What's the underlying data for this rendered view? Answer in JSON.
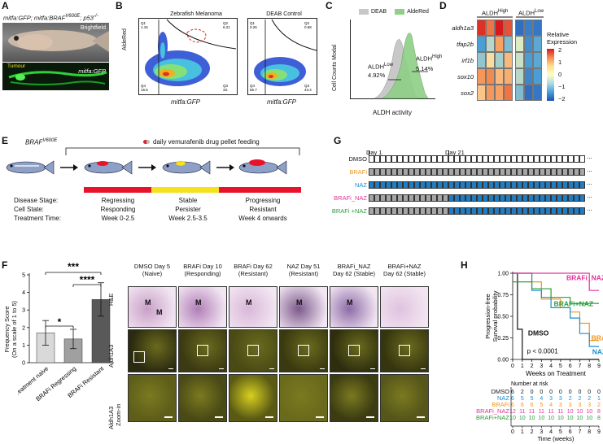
{
  "panel_letters": {
    "A": "A",
    "B": "B",
    "C": "C",
    "D": "D",
    "E": "E",
    "F": "F",
    "G": "G",
    "H": "H"
  },
  "panel_a": {
    "genotype_pre": "mitfa:GFP; mitfa:BRAF",
    "genotype_sup": "V600E",
    "genotype_mid": "; p53",
    "genotype_sup2": "-/-",
    "brightfield": "Brightfield",
    "tumour": "Tumour",
    "gfp": "mitfa:GFP"
  },
  "panel_b": {
    "title1": "Zebrafish Melanoma",
    "title2": "DEAB Control",
    "ylabel": "AldeRed",
    "xlabel1": "mitfa:GFP",
    "xlabel2": "mitfa:GFP",
    "q1a": "Q1",
    "q1a_v": "1.15",
    "q2a": "Q2",
    "q2a_v": "6.21",
    "q3a": "Q3",
    "q3a_v": "33.",
    "q4a": "Q4",
    "q4a_v": "16.5",
    "q1b": "Q1",
    "q1b_v": "0.26",
    "q2b": "Q2",
    "q2b_v": "0.68",
    "q3b": "Q3",
    "q3b_v": "43.4",
    "q4b": "Q4",
    "q4b_v": "55.7"
  },
  "panel_c": {
    "legend_deab": "DEAB",
    "legend_alde": "AldeRed",
    "ylabel": "Cell Counts Modal",
    "xlabel": "ALDH activity",
    "low_label": "ALDH",
    "low_sup": "Low",
    "low_pct": "4.92%",
    "high_label": "ALDH",
    "high_sup": "High",
    "high_pct": "5.14%",
    "colors": {
      "deab": "#c8c8c8",
      "alde": "#8fcf86"
    }
  },
  "panel_d": {
    "col_high": "ALDH",
    "col_high_sup": "High",
    "col_low": "ALDH",
    "col_low_sup": "Low",
    "genes": [
      "aldh1a3",
      "tfap2b",
      "irf1b",
      "sox10",
      "sox2"
    ],
    "legend_title1": "Relative",
    "legend_title2": "Expression",
    "legend_ticks": [
      "2",
      "1",
      "0",
      "−1",
      "−2"
    ],
    "values": [
      [
        1.8,
        1.2,
        2.0,
        1.5,
        -1.6,
        -1.4,
        -1.5
      ],
      [
        -1.0,
        -0.4,
        0.8,
        -0.7,
        -0.2,
        -1.2,
        -0.9
      ],
      [
        -0.6,
        0.3,
        -0.5,
        0.6,
        -0.3,
        -1.0,
        -0.9
      ],
      [
        0.9,
        1.0,
        0.6,
        0.7,
        -0.4,
        -1.3,
        -1.0
      ],
      [
        0.5,
        0.9,
        0.8,
        1.2,
        -0.7,
        -1.6,
        -1.5
      ]
    ]
  },
  "panel_e": {
    "braf": "BRAF",
    "braf_sup": "V600E",
    "pill": "daily vemurafenib drug pellet feeding",
    "row_labels": [
      "Disease Stage:",
      "Cell State:",
      "Treatment Time:"
    ],
    "stages": [
      {
        "s": "Regressing",
        "c": "Responding",
        "t": "Week 0-2.5"
      },
      {
        "s": "Stable",
        "c": "Persister",
        "t": "Week 2.5-3.5"
      },
      {
        "s": "Progressing",
        "c": "Resistant",
        "t": "Week 4 onwards"
      }
    ],
    "colors": {
      "red": "#e8132b",
      "yellow": "#f5e21c"
    }
  },
  "panel_g": {
    "day1": "Day 1",
    "day21": "Day 21",
    "rows": [
      {
        "label": "DMSO",
        "color": "#111111"
      },
      {
        "label": "BRAFi",
        "color": "#f29418"
      },
      {
        "label": "NAZ",
        "color": "#1a8fd1"
      },
      {
        "label": "BRAFi_NAZ",
        "color": "#e0349b"
      },
      {
        "label": "BRAFi +NAZ",
        "color": "#2a9d3a"
      }
    ],
    "dots": "...",
    "fill": {
      "gray": "#a6a6a6",
      "blue": "#1f7dc4",
      "white": "#ffffff"
    }
  },
  "panel_f": {
    "ylabel1": "Frequency Score",
    "ylabel2": "(On a scale of 1 to 5)",
    "yticks": [
      "5",
      "4",
      "3",
      "2",
      "1",
      "0"
    ],
    "sig1": "***",
    "sig2": "****",
    "sig3": "*"
  },
  "chart_data": [
    {
      "type": "bar",
      "title": "",
      "categories": [
        "Treatment naive",
        "BRAFi Regressing",
        "BRAFi Resistant"
      ],
      "values": [
        1.7,
        1.35,
        3.6
      ],
      "errors": [
        0.7,
        0.55,
        0.95
      ],
      "ylabel": "Frequency Score (On a scale of 1 to 5)",
      "ylim": [
        0,
        5
      ],
      "colors": [
        "#d9d9d9",
        "#a0a0a0",
        "#595959"
      ]
    },
    {
      "type": "line",
      "title": "",
      "xlabel": "Weeks on Treatment",
      "ylabel": "Progression-free Survival probability",
      "ylim": [
        0,
        1
      ],
      "xlim": [
        0,
        9
      ],
      "xticks": [
        "0",
        "1",
        "2",
        "3",
        "4",
        "5",
        "6",
        "7",
        "8",
        "9"
      ],
      "yticks": [
        "1.00",
        "0.75",
        "0.50",
        "0.25",
        "0.00"
      ],
      "pvalue": "p < 0.0001",
      "series": [
        {
          "name": "DMSO",
          "color": "#111111",
          "x": [
            0,
            0.5,
            0.5,
            1,
            1,
            9
          ],
          "y": [
            1,
            1,
            0.35,
            0.35,
            0,
            0
          ]
        },
        {
          "name": "BRAFi",
          "color": "#f29418",
          "x": [
            0,
            2,
            2,
            3,
            3,
            5,
            5,
            6,
            6,
            7,
            7,
            8,
            8,
            9
          ],
          "y": [
            1,
            1,
            0.9,
            0.9,
            0.7,
            0.7,
            0.6,
            0.6,
            0.55,
            0.55,
            0.42,
            0.42,
            0.22,
            0.22
          ]
        },
        {
          "name": "NAZ",
          "color": "#1a8fd1",
          "x": [
            0,
            2,
            2,
            3,
            3,
            4,
            4,
            6,
            6,
            7,
            7,
            8,
            8,
            9
          ],
          "y": [
            1,
            1,
            0.8,
            0.8,
            0.72,
            0.72,
            0.6,
            0.6,
            0.48,
            0.48,
            0.3,
            0.3,
            0.15,
            0.15
          ]
        },
        {
          "name": "BRAFi_NAZ",
          "color": "#e0349b",
          "x": [
            0,
            8,
            8,
            9
          ],
          "y": [
            1,
            1,
            0.8,
            0.8
          ]
        },
        {
          "name": "BRAFi+NAZ",
          "color": "#2a9d3a",
          "x": [
            0,
            2,
            2,
            4,
            4,
            6,
            6,
            9
          ],
          "y": [
            0.9,
            0.9,
            0.82,
            0.82,
            0.72,
            0.72,
            0.65,
            0.65
          ]
        }
      ]
    }
  ],
  "panel_h": {
    "labels": {
      "braf_naz": "BRAFi_NAZ",
      "brafi_plus": "BRAFi+NAZ",
      "dmso": "DMSO",
      "brafi": "BRAFi",
      "naz": "NAZ"
    },
    "risk_title": "Number at risk",
    "risk_xlabel": "Time (weeks)",
    "risk_ticks": [
      "0",
      "1",
      "2",
      "3",
      "4",
      "5",
      "6",
      "7",
      "8",
      "9"
    ],
    "risk_rows": [
      {
        "name": "DMSO",
        "color": "#111111",
        "vals": [
          "6",
          "2",
          "0",
          "0",
          "0",
          "0",
          "0",
          "0",
          "0",
          "0"
        ]
      },
      {
        "name": "NAZ",
        "color": "#1a8fd1",
        "vals": [
          "6",
          "5",
          "5",
          "4",
          "3",
          "3",
          "2",
          "2",
          "2",
          "1"
        ]
      },
      {
        "name": "BRAFi",
        "color": "#f29418",
        "vals": [
          "6",
          "6",
          "6",
          "5",
          "4",
          "3",
          "3",
          "3",
          "3",
          "2"
        ]
      },
      {
        "name": "BRAFi_NAZ",
        "color": "#e0349b",
        "vals": [
          "12",
          "11",
          "11",
          "11",
          "11",
          "11",
          "10",
          "10",
          "10",
          "8"
        ]
      },
      {
        "name": "BRAFi+NAZ",
        "color": "#2a9d3a",
        "vals": [
          "10",
          "10",
          "10",
          "10",
          "10",
          "10",
          "10",
          "10",
          "10",
          "8"
        ]
      }
    ]
  },
  "panel_f_micro": {
    "columns": [
      {
        "t1": "DMSO Day 5",
        "t2": "(Naive)"
      },
      {
        "t1": "BRAFi Day 10",
        "t2": "(Responding)"
      },
      {
        "t1": "BRAFi Day 62",
        "t2": "(Resistant)"
      },
      {
        "t1": "NAZ Day 51",
        "t2": "(Resistant)"
      },
      {
        "t1": "BRAFi_NAZ",
        "t2": "Day 62 (Stable)"
      },
      {
        "t1": "BRAFi+NAZ",
        "t2": "Day 62 (Stable)"
      }
    ],
    "row_labels": [
      "H&E",
      "Aldh1A3",
      "Aldh1A3",
      "Zoom-in"
    ],
    "m": "M"
  }
}
